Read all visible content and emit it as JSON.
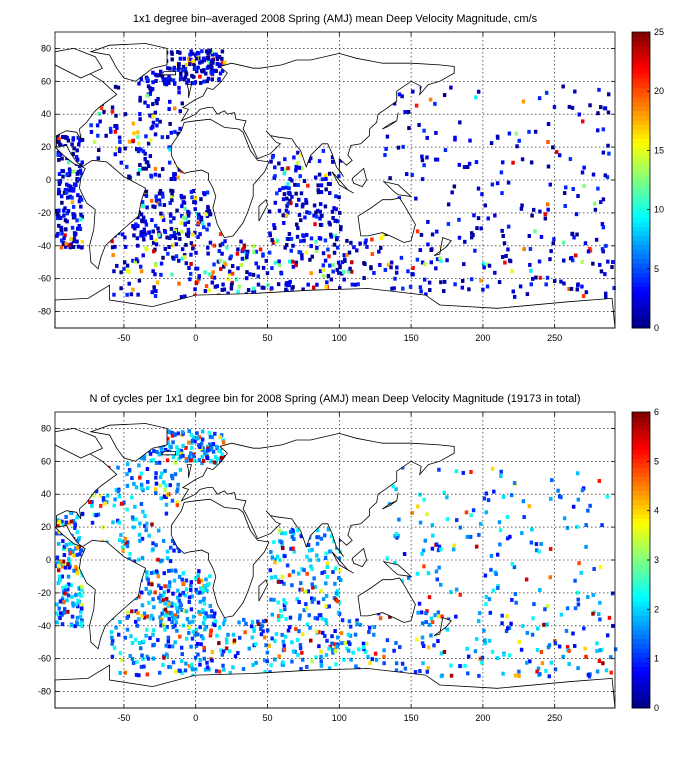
{
  "chart_data": [
    {
      "type": "heatmap",
      "title": "1x1 degree bin–averaged 2008 Spring (AMJ) mean Deep Velocity Magnitude, cm/s",
      "xlim": [
        -98,
        292
      ],
      "ylim": [
        -90,
        90
      ],
      "xticks": [
        -50,
        0,
        50,
        100,
        150,
        200,
        250
      ],
      "yticks": [
        -80,
        -60,
        -40,
        -20,
        0,
        20,
        40,
        60,
        80
      ],
      "grid": true,
      "colorbar": {
        "min": 0,
        "max": 25,
        "ticks": [
          0,
          5,
          10,
          15,
          20,
          25
        ],
        "colormap": "jet"
      },
      "value_distribution": "mostly 0-5 cm/s (blue); higher speeds 10-25 cm/s along Southern Ocean / Antarctic Circumpolar Current (about -60 to -40 latitude) and western boundary currents"
    },
    {
      "type": "heatmap",
      "title": "N of cycles per 1x1 degree bin for 2008 Spring (AMJ) mean Deep Velocity Magnitude (19173 in total)",
      "xlim": [
        -98,
        292
      ],
      "ylim": [
        -90,
        90
      ],
      "xticks": [
        -50,
        0,
        50,
        100,
        150,
        200,
        250
      ],
      "yticks": [
        -80,
        -60,
        -40,
        -20,
        0,
        20,
        40,
        60,
        80
      ],
      "grid": true,
      "total_cycles": 19173,
      "colorbar": {
        "min": 0,
        "max": 6,
        "ticks": [
          0,
          1,
          2,
          3,
          4,
          5,
          6
        ],
        "colormap": "jet"
      },
      "value_distribution": "mostly 1-2 cycles per bin; scattered bins with 4-6 cycles, densest in the Pacific"
    }
  ],
  "colors": {
    "frame": "#000000",
    "land": "#ffffff"
  }
}
